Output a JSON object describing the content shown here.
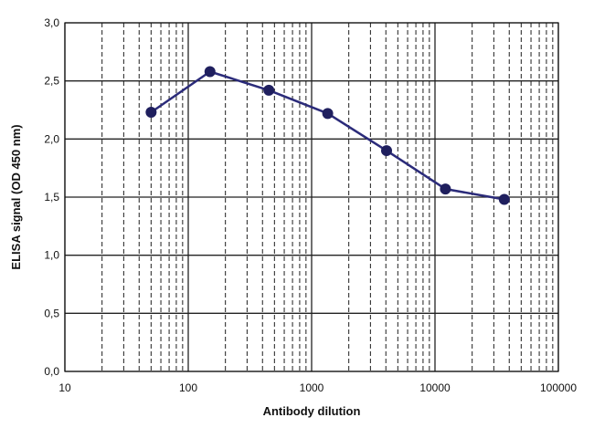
{
  "chart_data": {
    "type": "line",
    "xscale": "log",
    "xlim": [
      10,
      100000
    ],
    "ylim": [
      0.0,
      3.0
    ],
    "xlabel": "Antibody dilution",
    "ylabel": "ELISA signal (OD 450 nm)",
    "x_tick_labels": [
      "10",
      "100",
      "1000",
      "10000",
      "100000"
    ],
    "y_tick_labels": [
      "0,0",
      "0,5",
      "1,0",
      "1,5",
      "2,0",
      "2,5",
      "3,0"
    ],
    "grid": true,
    "series": [
      {
        "x": [
          50,
          150,
          450,
          1350,
          4050,
          12150,
          36450
        ],
        "y": [
          2.23,
          2.58,
          2.42,
          2.22,
          1.9,
          1.57,
          1.48
        ]
      }
    ],
    "colors": {
      "line": "#2b2b7a",
      "marker": "#1f1f5e",
      "grid_major": "#222222",
      "grid_minor": "#333333"
    }
  }
}
